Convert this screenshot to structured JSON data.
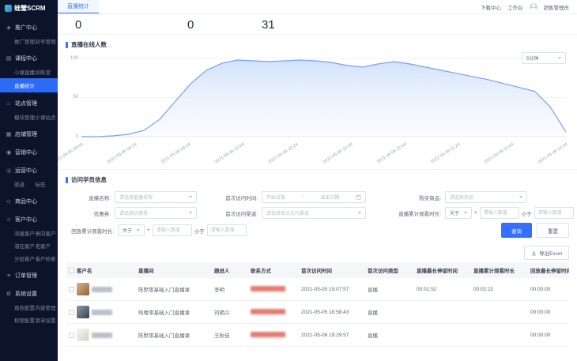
{
  "app": {
    "title": "蛙蟹SCRM"
  },
  "topbar": {
    "tab": "直播统计",
    "download_center": "下载中心",
    "workbench": "工作台",
    "user": "销售管理员"
  },
  "sidebar": {
    "groups": [
      {
        "key": "promotion",
        "icon": "megaphone-icon",
        "glyph": "◈",
        "label": "推广中心",
        "children": [
          {
            "label": "推广管理"
          },
          {
            "label": "封号管理"
          }
        ]
      },
      {
        "key": "course",
        "icon": "book-icon",
        "glyph": "▤",
        "label": "课程中心",
        "children": [
          {
            "label": "小课直播"
          },
          {
            "label": "训练营"
          },
          {
            "label": "直播统计",
            "active": true,
            "wide": true
          }
        ]
      },
      {
        "key": "site",
        "icon": "home-icon",
        "glyph": "⌂",
        "label": "站点管理",
        "children": [
          {
            "label": "模块管理"
          },
          {
            "label": "小课站点"
          }
        ]
      },
      {
        "key": "shop",
        "icon": "store-icon",
        "glyph": "▦",
        "label": "店铺管理",
        "children": []
      },
      {
        "key": "marketing",
        "icon": "target-icon",
        "glyph": "◉",
        "label": "营销中心",
        "children": []
      },
      {
        "key": "operation",
        "icon": "compass-icon",
        "glyph": "◎",
        "label": "运营中心",
        "children": [
          {
            "label": "渠道"
          },
          {
            "label": "标签"
          }
        ]
      },
      {
        "key": "product",
        "icon": "diamond-icon",
        "glyph": "◇",
        "label": "商品中心",
        "children": []
      },
      {
        "key": "customer",
        "icon": "user-icon",
        "glyph": "☺",
        "label": "客户中心",
        "children": [
          {
            "label": "流量客户"
          },
          {
            "label": "意向客户"
          },
          {
            "label": "潜在客户"
          },
          {
            "label": "老客户"
          },
          {
            "label": "分层客户"
          },
          {
            "label": "客户检索"
          }
        ]
      },
      {
        "key": "order",
        "icon": "list-icon",
        "glyph": "≡",
        "label": "订单管理",
        "children": []
      },
      {
        "key": "settings",
        "icon": "gear-icon",
        "glyph": "⚙",
        "label": "系统设置",
        "children": [
          {
            "label": "角色配置"
          },
          {
            "label": "内容管理"
          },
          {
            "label": "权限配置"
          },
          {
            "label": "菜单设置"
          }
        ]
      }
    ]
  },
  "stats": {
    "values": [
      "0",
      "0",
      "31"
    ]
  },
  "online_section": {
    "title": "直播在线人数",
    "interval": "5分钟"
  },
  "chart_data": {
    "type": "area",
    "title": "直播在线人数",
    "x_labels": [
      "2021-05-06 09:04",
      "2021-05-06 09:24",
      "2021-05-06 09:44",
      "2021-05-06 10:04",
      "2021-05-06 10:24",
      "2021-05-06 10:44",
      "2021-05-06 11:04",
      "2021-05-06 11:24",
      "2021-05-06 11:44",
      "2021-05-06 12:04"
    ],
    "values": [
      0,
      0,
      1,
      3,
      8,
      22,
      45,
      68,
      85,
      94,
      98,
      97,
      96,
      97,
      98,
      97,
      95,
      91,
      89,
      93,
      96,
      93,
      89,
      85,
      81,
      77,
      73,
      68,
      63,
      58,
      38,
      6
    ],
    "yticks": [
      0,
      50,
      100
    ],
    "ylim": [
      0,
      100
    ],
    "grid": true,
    "legend": "none",
    "line_color": "#76a1f5",
    "fill_color": "#cfe0fb"
  },
  "visitor_section": {
    "title": "访问学员信息"
  },
  "filters": {
    "live_name_label": "直播名称:",
    "live_name_placeholder": "请选择直播名称",
    "visit_time_label": "首次访问时间:",
    "date_start": "开始日期",
    "date_sep": "~",
    "date_end": "结束日期",
    "product_label": "购买商品:",
    "product_placeholder": "请选择商品",
    "coupon_label": "优惠券:",
    "coupon_placeholder": "请选择优惠券",
    "channel_label": "首次访问渠道:",
    "channel_placeholder": "请选择首次访问渠道",
    "live_watch_label": "直播累计观看时长:",
    "replay_watch_label": "回放累计观看时长:",
    "gt": "大于",
    "lt": "小于",
    "plus": "+",
    "num_placeholder": "请输入数值",
    "search": "查询",
    "reset": "重置"
  },
  "export_label": "导出Excel",
  "table": {
    "columns": [
      "客户名",
      "直播间",
      "跟进人",
      "联系方式",
      "首次访问时间",
      "首次访问类型",
      "直播最长停留时间",
      "直播累计观看时长",
      "回放最长停留时间"
    ],
    "rows": [
      {
        "live_room": "陈默零基础入门直播课",
        "inviter": "李明",
        "first_visit": "2021-05-05 19:07:57",
        "visit_type": "直播",
        "max_stay": "00:01:52",
        "total_watch": "00:02:22",
        "replay_stay": "00:00:00"
      },
      {
        "live_room": "哈喽零基础入门直播课",
        "inviter": "刘艳兴",
        "first_visit": "2021-05-05 18:58:43",
        "visit_type": "直播",
        "max_stay": "",
        "total_watch": "",
        "replay_stay": "00:00:00"
      },
      {
        "live_room": "陈默零基础入门直播课",
        "inviter": "王秋佳",
        "first_visit": "2021-05-06 19:29:57",
        "visit_type": "直播",
        "max_stay": "",
        "total_watch": "",
        "replay_stay": "00:00:00"
      }
    ]
  },
  "colors": {
    "primary": "#3370ff",
    "sidebar_bg": "#0c142b",
    "active_menu": "#2d6af5",
    "chart_line": "#76a1f5",
    "chart_fill": "#cfe0fb",
    "redacted_phone": "#e25a4e"
  }
}
